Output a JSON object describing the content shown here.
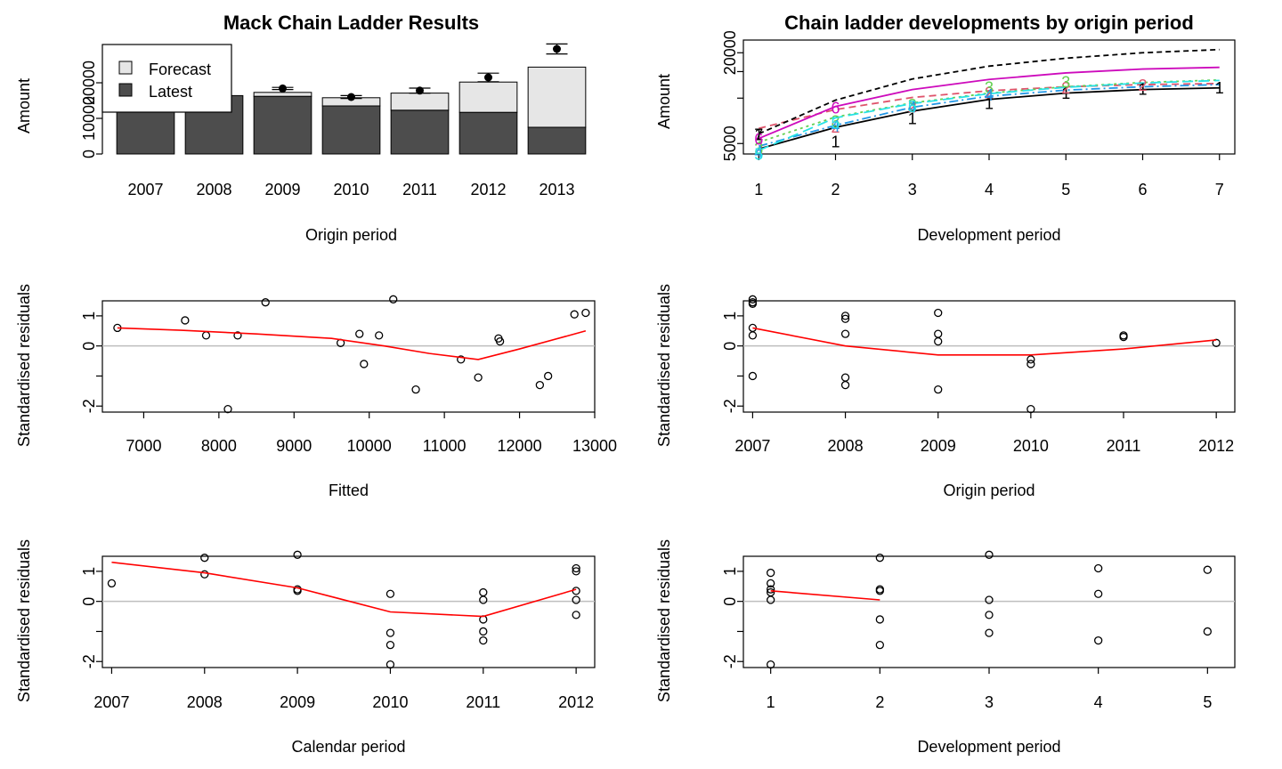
{
  "chart_data": [
    {
      "type": "bar",
      "title": "Mack Chain Ladder Results",
      "xlabel": "Origin period",
      "ylabel": "Amount",
      "categories": [
        "2007",
        "2008",
        "2009",
        "2010",
        "2011",
        "2012",
        "2013"
      ],
      "series": [
        {
          "name": "Latest",
          "values": [
            15900,
            16400,
            16200,
            13500,
            12300,
            11700,
            7500
          ]
        },
        {
          "name": "Forecast",
          "values": [
            0,
            0,
            1100,
            2300,
            4800,
            8500,
            16900
          ]
        }
      ],
      "ultimate": [
        15900,
        16400,
        18400,
        16000,
        17800,
        21500,
        29500
      ],
      "ultimate_error": [
        0,
        0,
        300,
        400,
        700,
        1200,
        1400
      ],
      "ylim": [
        0,
        32000
      ],
      "yticks": [
        0,
        10000,
        20000
      ],
      "yticklabels": [
        "0",
        "10000",
        "20000"
      ],
      "legend": {
        "placement": "top-left",
        "entries": [
          "Forecast",
          "Latest"
        ]
      },
      "colors": {
        "latest": "#4d4d4d",
        "forecast": "#e6e6e6"
      }
    },
    {
      "type": "line",
      "title": "Chain ladder developments by origin period",
      "xlabel": "Development period",
      "ylabel": "Amount",
      "x": [
        1,
        2,
        3,
        4,
        5,
        6,
        7
      ],
      "scale": "log",
      "ylim": [
        4500,
        23000
      ],
      "yticks": [
        5000,
        20000
      ],
      "yticklabels": [
        "5000",
        "20000"
      ],
      "xticklabels": [
        "1",
        "2",
        "3",
        "4",
        "5",
        "6",
        "7"
      ],
      "series": [
        {
          "label": "1",
          "color": "#000000",
          "dash": "",
          "values": [
            4600,
            6400,
            8200,
            9800,
            10800,
            11400,
            11700
          ]
        },
        {
          "label": "2",
          "color": "#df536b",
          "dash": "8,5",
          "values": [
            6300,
            8400,
            10100,
            11200,
            11900,
            12300,
            12500
          ]
        },
        {
          "label": "3",
          "color": "#61d04f",
          "dash": "3,4",
          "values": [
            5100,
            7500,
            9300,
            10800,
            11900,
            12700,
            13200
          ]
        },
        {
          "label": "4",
          "color": "#2297e6",
          "dash": "10,4,2,4",
          "values": [
            4800,
            6600,
            8700,
            10300,
            11300,
            11900,
            12300
          ]
        },
        {
          "label": "5",
          "color": "#28e2e5",
          "dash": "12,6",
          "values": [
            4500,
            7400,
            9200,
            10700,
            11800,
            12600,
            13100
          ]
        },
        {
          "label": "6",
          "color": "#cd0bbc",
          "dash": "",
          "values": [
            5400,
            8800,
            11400,
            13300,
            14700,
            15600,
            16000
          ]
        },
        {
          "label": "7",
          "color": "#000000",
          "dash": "6,4",
          "values": [
            5800,
            9700,
            13400,
            16300,
            18400,
            20000,
            21000
          ]
        }
      ],
      "markers": [
        {
          "label": "1",
          "color": "#000000",
          "x": [
            1,
            2,
            3,
            4,
            5,
            6,
            7
          ],
          "y": [
            5800,
            5200,
            7400,
            9300,
            10900,
            11600,
            11800
          ]
        },
        {
          "label": "2",
          "color": "#df536b",
          "x": [
            1,
            2,
            3,
            4,
            5,
            6
          ],
          "y": [
            4700,
            6500,
            8900,
            11000,
            11800,
            12300
          ]
        },
        {
          "label": "3",
          "color": "#61d04f",
          "x": [
            1,
            2,
            3,
            4,
            5
          ],
          "y": [
            4700,
            7100,
            9100,
            11900,
            12900
          ]
        },
        {
          "label": "4",
          "color": "#2297e6",
          "x": [
            1,
            2,
            3,
            4
          ],
          "y": [
            4400,
            6600,
            8800,
            10600
          ]
        },
        {
          "label": "5",
          "color": "#28e2e5",
          "x": [
            1,
            2,
            3
          ],
          "y": [
            4300,
            6900,
            8900
          ]
        },
        {
          "label": "6",
          "color": "#cd0bbc",
          "x": [
            1,
            2
          ],
          "y": [
            5400,
            8700
          ]
        },
        {
          "label": "7",
          "color": "#000000",
          "x": [
            1
          ],
          "y": [
            5800
          ]
        }
      ]
    },
    {
      "type": "scatter",
      "xlabel": "Fitted",
      "ylabel": "Standardised residuals",
      "xlim": [
        6450,
        13000
      ],
      "ylim": [
        -2.2,
        1.5
      ],
      "xticks": [
        7000,
        8000,
        9000,
        10000,
        11000,
        12000,
        13000
      ],
      "xticklabels": [
        "7000",
        "8000",
        "9000",
        "10000",
        "11000",
        "12000",
        "13000"
      ],
      "yticks": [
        -2,
        0,
        1
      ],
      "yticklabels": [
        "-2",
        "0",
        "1"
      ],
      "points": [
        [
          6650,
          0.6
        ],
        [
          7550,
          0.85
        ],
        [
          7830,
          0.35
        ],
        [
          8120,
          -2.1
        ],
        [
          8250,
          0.35
        ],
        [
          8620,
          1.45
        ],
        [
          9620,
          0.1
        ],
        [
          9870,
          0.4
        ],
        [
          9930,
          -0.6
        ],
        [
          10130,
          0.35
        ],
        [
          10320,
          1.55
        ],
        [
          10620,
          -1.45
        ],
        [
          11220,
          -0.45
        ],
        [
          11450,
          -1.05
        ],
        [
          11720,
          0.25
        ],
        [
          11740,
          0.15
        ],
        [
          12270,
          -1.3
        ],
        [
          12380,
          -1.0
        ],
        [
          12730,
          1.05
        ],
        [
          12880,
          1.1
        ]
      ],
      "trend": [
        [
          6650,
          0.6
        ],
        [
          7500,
          0.52
        ],
        [
          8500,
          0.4
        ],
        [
          9500,
          0.25
        ],
        [
          10200,
          0.0
        ],
        [
          10800,
          -0.25
        ],
        [
          11450,
          -0.45
        ],
        [
          12000,
          -0.1
        ],
        [
          12880,
          0.5
        ]
      ]
    },
    {
      "type": "scatter",
      "xlabel": "Origin period",
      "ylabel": "Standardised residuals",
      "xlim": [
        2006.9,
        2012.2
      ],
      "ylim": [
        -2.2,
        1.5
      ],
      "xticks": [
        2007,
        2008,
        2009,
        2010,
        2011,
        2012
      ],
      "xticklabels": [
        "2007",
        "2008",
        "2009",
        "2010",
        "2011",
        "2012"
      ],
      "yticks": [
        -2,
        0,
        1
      ],
      "yticklabels": [
        "-2",
        "0",
        "1"
      ],
      "points": [
        [
          2007,
          1.55
        ],
        [
          2007,
          1.45
        ],
        [
          2007,
          1.4
        ],
        [
          2007,
          0.6
        ],
        [
          2007,
          0.35
        ],
        [
          2007,
          -1.0
        ],
        [
          2008,
          1.0
        ],
        [
          2008,
          0.9
        ],
        [
          2008,
          0.4
        ],
        [
          2008,
          -1.05
        ],
        [
          2008,
          -1.3
        ],
        [
          2009,
          1.1
        ],
        [
          2009,
          0.4
        ],
        [
          2009,
          0.15
        ],
        [
          2009,
          -1.45
        ],
        [
          2010,
          -0.45
        ],
        [
          2010,
          -0.6
        ],
        [
          2010,
          -2.1
        ],
        [
          2011,
          0.35
        ],
        [
          2011,
          0.3
        ],
        [
          2012,
          0.1
        ]
      ],
      "trend": [
        [
          2007,
          0.6
        ],
        [
          2008,
          0.0
        ],
        [
          2009,
          -0.3
        ],
        [
          2010,
          -0.3
        ],
        [
          2011,
          -0.1
        ],
        [
          2012,
          0.2
        ]
      ]
    },
    {
      "type": "scatter",
      "xlabel": "Calendar period",
      "ylabel": "Standardised residuals",
      "xlim": [
        2006.9,
        2012.2
      ],
      "ylim": [
        -2.2,
        1.5
      ],
      "xticks": [
        2007,
        2008,
        2009,
        2010,
        2011,
        2012
      ],
      "xticklabels": [
        "2007",
        "2008",
        "2009",
        "2010",
        "2011",
        "2012"
      ],
      "yticks": [
        -2,
        0,
        1
      ],
      "yticklabels": [
        "-2",
        "0",
        "1"
      ],
      "points": [
        [
          2007,
          0.6
        ],
        [
          2008,
          1.45
        ],
        [
          2008,
          0.9
        ],
        [
          2009,
          1.55
        ],
        [
          2009,
          0.4
        ],
        [
          2009,
          0.35
        ],
        [
          2010,
          0.25
        ],
        [
          2010,
          -1.05
        ],
        [
          2010,
          -1.45
        ],
        [
          2010,
          -2.1
        ],
        [
          2011,
          0.3
        ],
        [
          2011,
          0.05
        ],
        [
          2011,
          -0.6
        ],
        [
          2011,
          -1.0
        ],
        [
          2011,
          -1.3
        ],
        [
          2012,
          1.1
        ],
        [
          2012,
          1.0
        ],
        [
          2012,
          0.35
        ],
        [
          2012,
          0.05
        ],
        [
          2012,
          -0.45
        ]
      ],
      "trend": [
        [
          2007,
          1.3
        ],
        [
          2008,
          0.95
        ],
        [
          2009,
          0.45
        ],
        [
          2010,
          -0.35
        ],
        [
          2011,
          -0.5
        ],
        [
          2012,
          0.4
        ]
      ]
    },
    {
      "type": "scatter",
      "xlabel": "Development period",
      "ylabel": "Standardised residuals",
      "xlim": [
        0.75,
        5.25
      ],
      "ylim": [
        -2.2,
        1.5
      ],
      "xticks": [
        1,
        2,
        3,
        4,
        5
      ],
      "xticklabels": [
        "1",
        "2",
        "3",
        "4",
        "5"
      ],
      "yticks": [
        -2,
        0,
        1
      ],
      "yticklabels": [
        "-2",
        "0",
        "1"
      ],
      "points": [
        [
          1,
          0.95
        ],
        [
          1,
          0.6
        ],
        [
          1,
          0.4
        ],
        [
          1,
          0.3
        ],
        [
          1,
          0.05
        ],
        [
          1,
          -2.1
        ],
        [
          2,
          1.45
        ],
        [
          2,
          0.4
        ],
        [
          2,
          0.35
        ],
        [
          2,
          -0.6
        ],
        [
          2,
          -1.45
        ],
        [
          3,
          1.55
        ],
        [
          3,
          0.05
        ],
        [
          3,
          -0.45
        ],
        [
          3,
          -1.05
        ],
        [
          4,
          1.1
        ],
        [
          4,
          0.25
        ],
        [
          4,
          -1.3
        ],
        [
          5,
          1.05
        ],
        [
          5,
          -1.0
        ]
      ],
      "trend": [
        [
          1,
          0.35
        ],
        [
          2,
          0.05
        ]
      ]
    }
  ]
}
